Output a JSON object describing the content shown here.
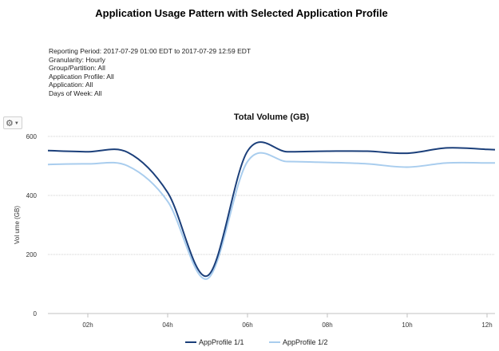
{
  "page": {
    "title": "Application Usage Pattern with Selected Application Profile"
  },
  "info": {
    "reporting_period": "Reporting Period: 2017-07-29 01:00 EDT to 2017-07-29 12:59 EDT",
    "granularity": "Granularity: Hourly",
    "group_partition": "Group/Partition: All",
    "application_profile": "Application Profile: All",
    "application": "Application: All",
    "days_of_week": "Days of Week: All"
  },
  "toolbar": {
    "gear_icon": "gear-icon"
  },
  "chart_data": {
    "type": "line",
    "title": "Total Volume (GB)",
    "ylabel": "Vol ume (GB)",
    "xlabel": "",
    "ylim": [
      0,
      600
    ],
    "xlim": [
      1,
      12.2
    ],
    "yticks": [
      "0",
      "200",
      "400",
      "600"
    ],
    "xticks": [
      {
        "value": 2,
        "label": "02h"
      },
      {
        "value": 4,
        "label": "04h"
      },
      {
        "value": 6,
        "label": "06h"
      },
      {
        "value": 8,
        "label": "08h"
      },
      {
        "value": 10,
        "label": "10h"
      },
      {
        "value": 12,
        "label": "12h"
      }
    ],
    "grid": true,
    "legend": "bottom-center",
    "series": [
      {
        "name": "AppProfile 1/1",
        "color": "#1b3f7a",
        "points": [
          [
            1,
            552
          ],
          [
            2,
            548
          ],
          [
            3,
            546
          ],
          [
            4,
            410
          ],
          [
            5,
            128
          ],
          [
            6,
            550
          ],
          [
            7,
            548
          ],
          [
            8,
            550
          ],
          [
            9,
            550
          ],
          [
            10,
            543
          ],
          [
            11,
            561
          ],
          [
            12,
            556
          ],
          [
            12.2,
            555
          ]
        ]
      },
      {
        "name": "AppProfile 1/2",
        "color": "#a9cdee",
        "points": [
          [
            1,
            505
          ],
          [
            2,
            507
          ],
          [
            3,
            500
          ],
          [
            4,
            380
          ],
          [
            5,
            118
          ],
          [
            6,
            515
          ],
          [
            7,
            515
          ],
          [
            8,
            512
          ],
          [
            9,
            507
          ],
          [
            10,
            496
          ],
          [
            11,
            510
          ],
          [
            12,
            510
          ],
          [
            12.2,
            510
          ]
        ]
      }
    ]
  }
}
